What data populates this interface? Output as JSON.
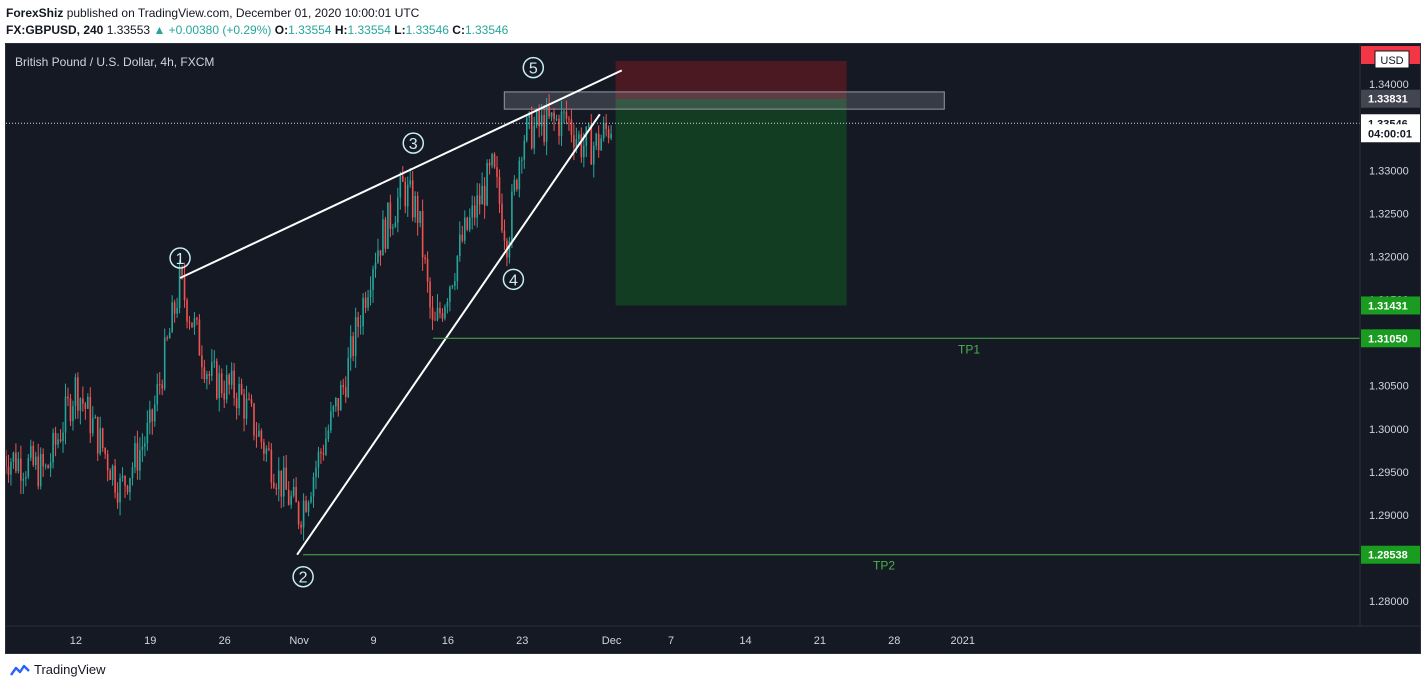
{
  "header": {
    "author": "ForexShiz",
    "published": " published on TradingView.com, December 01, 2020 10:00:01 UTC",
    "symbol": "FX:GBPUSD, 240",
    "last": "1.33553",
    "change": "▲ +0.00380 (+0.29%)",
    "o_label": "O:",
    "o": "1.33554",
    "h_label": "H:",
    "h": "1.33554",
    "l_label": "L:",
    "l": "1.33546",
    "c_label": "C:",
    "c": "1.33546"
  },
  "chart_data": {
    "type": "candlestick",
    "title": "British Pound / U.S. Dollar, 4h, FXCM",
    "currency": "USD",
    "x_labels": [
      "12",
      "19",
      "26",
      "Nov",
      "9",
      "16",
      "23",
      "Dec",
      "7",
      "14",
      "21",
      "28",
      "2021"
    ],
    "y_ticks": [
      1.28,
      1.285,
      1.29,
      1.295,
      1.3,
      1.305,
      1.31,
      1.315,
      1.32,
      1.325,
      1.33,
      1.335,
      1.34
    ],
    "y_tick_labels": [
      "1.28000",
      "1.28500",
      "1.29000",
      "1.29500",
      "1.30000",
      "1.30500",
      "1.31000",
      "1.31500",
      "1.32000",
      "1.32500",
      "1.33000",
      "1.33500",
      "1.34000"
    ],
    "ylim": [
      1.2785,
      1.3435
    ],
    "waves": [
      {
        "label": "1",
        "price": 1.3175
      },
      {
        "label": "2",
        "price": 1.2855
      },
      {
        "label": "3",
        "price": 1.3313
      },
      {
        "label": "4",
        "price": 1.3199
      },
      {
        "label": "5",
        "price": 1.3396
      }
    ],
    "anchors": [
      {
        "date": "Oct 05",
        "price": 1.297
      },
      {
        "date": "Oct 08",
        "price": 1.295
      },
      {
        "date": "Oct 12",
        "price": 1.305
      },
      {
        "date": "Oct 15",
        "price": 1.293
      },
      {
        "date": "Oct 19",
        "price": 1.3
      },
      {
        "date": "Oct 21",
        "price": 1.317
      },
      {
        "date": "Oct 23",
        "price": 1.306
      },
      {
        "date": "Oct 27",
        "price": 1.304
      },
      {
        "date": "Oct 30",
        "price": 1.293
      },
      {
        "date": "Nov 02",
        "price": 1.29
      },
      {
        "date": "Nov 05",
        "price": 1.305
      },
      {
        "date": "Nov 09",
        "price": 1.32
      },
      {
        "date": "Nov 11",
        "price": 1.328
      },
      {
        "date": "Nov 12",
        "price": 1.325
      },
      {
        "date": "Nov 13",
        "price": 1.311
      },
      {
        "date": "Nov 17",
        "price": 1.322
      },
      {
        "date": "Nov 19",
        "price": 1.33
      },
      {
        "date": "Nov 20",
        "price": 1.322
      },
      {
        "date": "Nov 23",
        "price": 1.334
      },
      {
        "date": "Nov 24",
        "price": 1.335
      },
      {
        "date": "Nov 26",
        "price": 1.336
      },
      {
        "date": "Nov 27",
        "price": 1.333
      },
      {
        "date": "Nov 30",
        "price": 1.333
      },
      {
        "date": "Dec 01",
        "price": 1.3355
      }
    ],
    "price_labels": [
      {
        "text": "1.33831",
        "value": 1.33831,
        "bg": "#434651",
        "fg": "#ffffff"
      },
      {
        "text": "1.33546",
        "value": 1.33546,
        "bg": "#ffffff",
        "fg": "#131722"
      },
      {
        "text": "04:00:01",
        "value": 1.3343,
        "bg": "#ffffff",
        "fg": "#131722"
      },
      {
        "text": "1.31431",
        "value": 1.31431,
        "bg": "#1a9c20",
        "fg": "#ffffff"
      },
      {
        "text": "1.31050",
        "value": 1.3105,
        "bg": "#1a9c20",
        "fg": "#ffffff"
      },
      {
        "text": "1.28538",
        "value": 1.28538,
        "bg": "#1a9c20",
        "fg": "#ffffff"
      }
    ],
    "targets": [
      {
        "label": "TP1",
        "value": 1.3105
      },
      {
        "label": "TP2",
        "value": 1.28538
      }
    ],
    "colors": {
      "up": "#26a69a",
      "down": "#ef5350",
      "bg": "#151924",
      "text": "#d1d4dc",
      "tp": "#4caf50"
    }
  },
  "footer": {
    "brand": "TradingView"
  }
}
